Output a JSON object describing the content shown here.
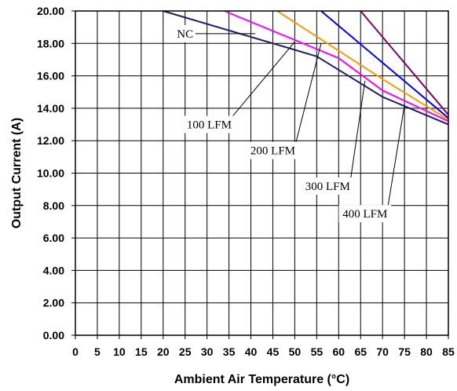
{
  "chart_data": {
    "type": "line",
    "title": "",
    "xlabel": "Ambient Air Temperature (°C)",
    "ylabel": "Output Current (A)",
    "xlim": [
      0,
      85
    ],
    "ylim": [
      0,
      20
    ],
    "grid": true,
    "legend": "none",
    "x_ticks": [
      "0",
      "5",
      "10",
      "15",
      "20",
      "25",
      "30",
      "35",
      "40",
      "45",
      "50",
      "55",
      "60",
      "65",
      "70",
      "75",
      "80",
      "85"
    ],
    "y_ticks": [
      "0.00",
      "2.00",
      "4.00",
      "6.00",
      "8.00",
      "10.00",
      "12.00",
      "14.00",
      "16.00",
      "18.00",
      "20.00"
    ],
    "series": [
      {
        "color": "#1f1f6e",
        "points": [
          [
            20,
            20.0
          ],
          [
            55,
            17.2
          ],
          [
            70,
            14.7
          ],
          [
            85,
            13.0
          ]
        ]
      },
      {
        "color": "#ff00ff",
        "points": [
          [
            34,
            20.0
          ],
          [
            60,
            17.1
          ],
          [
            70,
            15.1
          ],
          [
            85,
            13.2
          ]
        ]
      },
      {
        "color": "#ff9900",
        "points": [
          [
            46,
            20.0
          ],
          [
            70,
            15.8
          ],
          [
            85,
            13.3
          ]
        ]
      },
      {
        "color": "#0000ff",
        "points": [
          [
            56,
            20.0
          ],
          [
            85,
            13.4
          ]
        ]
      },
      {
        "color": "#800060",
        "points": [
          [
            65,
            20.0
          ],
          [
            85,
            13.6
          ]
        ]
      }
    ],
    "annotations": [
      {
        "text": "NC",
        "anchor": [
          41,
          18.6
        ],
        "label": [
          25,
          18.6
        ]
      },
      {
        "text": "100 LFM",
        "anchor": [
          50,
          18.1
        ],
        "label": [
          30.5,
          13.0
        ]
      },
      {
        "text": "200 LFM",
        "anchor": [
          56,
          18.0
        ],
        "label": [
          45,
          11.4
        ]
      },
      {
        "text": "300 LFM",
        "anchor": [
          66,
          15.7
        ],
        "label": [
          57.5,
          9.2
        ]
      },
      {
        "text": "400 LFM",
        "anchor": [
          75,
          14.2
        ],
        "label": [
          66,
          7.5
        ]
      }
    ]
  }
}
